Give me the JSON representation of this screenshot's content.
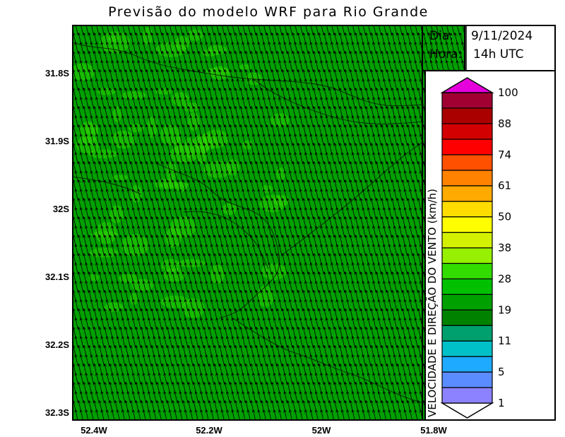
{
  "title": "Previsão do modelo WRF para Rio Grande",
  "info": {
    "date_label": "Dia:",
    "date_value": "9/11/2024",
    "time_label": "Hora:",
    "time_value": "14h UTC"
  },
  "map": {
    "latitude_labels": [
      "31.8S",
      "31.9S",
      "32S",
      "32.1S",
      "32.2S",
      "32.3S"
    ],
    "longitude_labels": [
      "52.4W",
      "52.2W",
      "52W",
      "51.8W"
    ],
    "field": "wind speed and direction",
    "base_color": "#00a000",
    "gust_color": "#32dc00",
    "vector_color": "#000000"
  },
  "legend": {
    "title": "VELOCIDADE E DIREÇÃO DO VENTO (km/h)",
    "levels": [
      "1",
      "5",
      "11",
      "19",
      "28",
      "38",
      "50",
      "61",
      "74",
      "88",
      "100"
    ],
    "colors": [
      "#8c82ff",
      "#5a8cff",
      "#1eaaff",
      "#00c0c8",
      "#00a06e",
      "#008200",
      "#00a000",
      "#00c000",
      "#32dc00",
      "#96f000",
      "#d2f000",
      "#ffff00",
      "#ffdc00",
      "#ffaa00",
      "#ff8200",
      "#ff5000",
      "#ff0000",
      "#d20000",
      "#aa0000",
      "#a00032",
      "#b40078",
      "#e600dc"
    ]
  }
}
